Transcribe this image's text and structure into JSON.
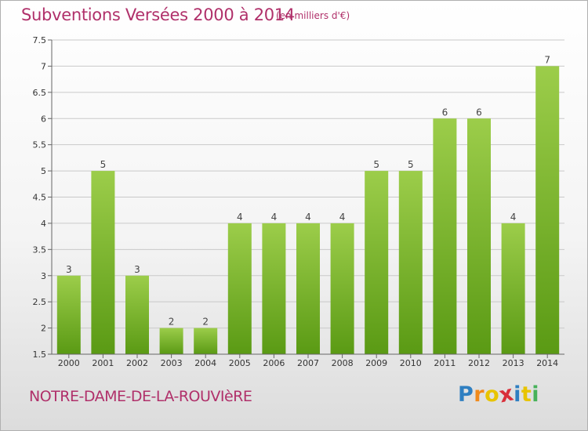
{
  "header": {
    "title": "Subventions Versées 2000 à 2014",
    "subtitle": "(en milliers d'€)"
  },
  "footer": {
    "town": "NOTRE-DAME-DE-LA-ROUVIèRE",
    "logo": {
      "letters": [
        "P",
        "r",
        "o",
        "x",
        "i",
        "t",
        "i"
      ],
      "colors": [
        "#2f7fc1",
        "#f08a1c",
        "#e8c400",
        "#d92f3a",
        "#2f7fc1",
        "#e8c400",
        "#47b25a"
      ]
    }
  },
  "colors": {
    "bar_top": "#9ccd4a",
    "bar_bottom": "#5a9a14",
    "grid": "#c9c9c9",
    "axis": "#666666"
  },
  "chart_data": {
    "type": "bar",
    "categories": [
      "2000",
      "2001",
      "2002",
      "2003",
      "2004",
      "2005",
      "2006",
      "2007",
      "2008",
      "2009",
      "2010",
      "2011",
      "2012",
      "2013",
      "2014"
    ],
    "values": [
      3,
      5,
      3,
      2,
      2,
      4,
      4,
      4,
      4,
      5,
      5,
      6,
      6,
      4,
      7
    ],
    "value_labels": [
      "3",
      "5",
      "3",
      "2",
      "2",
      "4",
      "4",
      "4",
      "4",
      "5",
      "5",
      "6",
      "6",
      "4",
      "7"
    ],
    "y_ticks": [
      1.5,
      2,
      2.5,
      3,
      3.5,
      4,
      4.5,
      5,
      5.5,
      6,
      6.5,
      7,
      7.5
    ],
    "y_tick_labels": [
      "1.5",
      "2",
      "2.5",
      "3",
      "3.5",
      "4",
      "4.5",
      "5",
      "5.5",
      "6",
      "6.5",
      "7",
      "7.5"
    ],
    "ylim": [
      1.5,
      7.5
    ],
    "grid": true,
    "legend": "none"
  }
}
